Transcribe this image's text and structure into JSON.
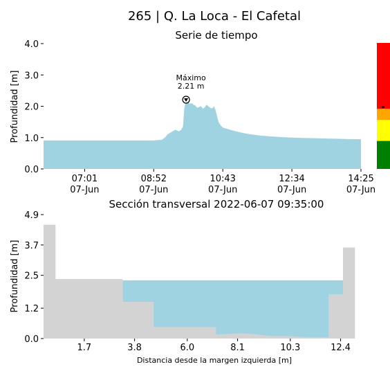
{
  "figure": {
    "title": "265 | Q. La Loca - El Cafetal"
  },
  "chart_data": [
    {
      "type": "area",
      "title": "Serie de tiempo",
      "xlabel": "",
      "ylabel": "Profundidad [m]",
      "xlim": [
        "05:55",
        "14:25"
      ],
      "ylim": [
        0,
        4.0
      ],
      "yticks": [
        0.0,
        1.0,
        2.0,
        3.0,
        4.0
      ],
      "ytick_labels": [
        "0.0",
        "1.0",
        "2.0",
        "3.0",
        "4.0"
      ],
      "xticks": [
        "07:01",
        "08:52",
        "10:43",
        "12:34",
        "14:25"
      ],
      "xtick_labels": [
        {
          "time": "07:01",
          "date": "07-Jun"
        },
        {
          "time": "08:52",
          "date": "07-Jun"
        },
        {
          "time": "10:43",
          "date": "07-Jun"
        },
        {
          "time": "12:34",
          "date": "07-Jun"
        },
        {
          "time": "14:25",
          "date": "07-Jun"
        }
      ],
      "color": "#9fd3e1",
      "series": [
        {
          "x": [
            "05:55",
            "06:30",
            "07:00",
            "07:30",
            "08:00",
            "08:30",
            "08:52",
            "09:05",
            "09:10",
            "09:14",
            "09:18",
            "09:22",
            "09:27",
            "09:32",
            "09:36",
            "09:39",
            "09:41",
            "09:44",
            "09:47",
            "09:50",
            "09:53",
            "09:56",
            "09:59",
            "10:02",
            "10:05",
            "10:08",
            "10:11",
            "10:14",
            "10:17",
            "10:20",
            "10:23",
            "10:26",
            "10:29",
            "10:31",
            "10:33",
            "10:36",
            "10:40",
            "10:43",
            "10:50",
            "11:00",
            "11:10",
            "11:20",
            "11:30",
            "11:45",
            "12:00",
            "12:15",
            "12:34",
            "12:50",
            "13:10",
            "13:30",
            "13:50",
            "14:10",
            "14:25"
          ],
          "values": [
            0.91,
            0.91,
            0.91,
            0.91,
            0.91,
            0.91,
            0.91,
            0.93,
            1.0,
            1.1,
            1.15,
            1.2,
            1.25,
            1.2,
            1.25,
            1.35,
            1.9,
            2.21,
            2.15,
            2.08,
            2.1,
            2.05,
            2.02,
            1.95,
            1.98,
            2.0,
            1.92,
            1.97,
            2.05,
            2.0,
            1.95,
            1.93,
            2.0,
            1.9,
            1.75,
            1.5,
            1.38,
            1.32,
            1.28,
            1.22,
            1.17,
            1.13,
            1.1,
            1.06,
            1.04,
            1.02,
            1.0,
            0.99,
            0.98,
            0.97,
            0.96,
            0.95,
            0.95
          ]
        }
      ],
      "annotation": {
        "label": "Máximo",
        "value_text": "2.21 m",
        "x": "09:44",
        "y": 2.21
      },
      "status_bar": {
        "segments": [
          {
            "from": 0.0,
            "to": 1.0,
            "color": "#008000"
          },
          {
            "from": 1.0,
            "to": 1.75,
            "color": "#ffff00"
          },
          {
            "from": 1.75,
            "to": 2.15,
            "color": "#ffa500"
          },
          {
            "from": 2.15,
            "to": 4.5,
            "color": "#ff0000"
          }
        ],
        "marker_value": 2.21
      }
    },
    {
      "type": "area",
      "title": "Sección transversal 2022-06-07 09:35:00",
      "xlabel": "Distancia desde la margen izquierda [m]",
      "ylabel": "Profundidad [m]",
      "xlim": [
        0,
        13.25
      ],
      "ylim": [
        0,
        4.9
      ],
      "yticks": [
        0.0,
        1.2,
        2.5,
        3.7,
        4.9
      ],
      "ytick_labels": [
        "0.0",
        "1.2",
        "2.5",
        "3.7",
        "4.9"
      ],
      "xticks": [
        1.7,
        3.8,
        6.0,
        8.1,
        10.3,
        12.4
      ],
      "xtick_labels": [
        "1.7",
        "3.8",
        "6.0",
        "8.1",
        "10.3",
        "12.4"
      ],
      "water_level": 2.3,
      "water_color": "#9fd3e1",
      "ground_color": "#d3d3d3",
      "bed_profile": {
        "x": [
          0,
          0.5,
          0.5,
          3.3,
          3.3,
          4.6,
          4.6,
          7.2,
          7.2,
          8.0,
          8.5,
          9.0,
          9.5,
          10.0,
          10.5,
          11.0,
          11.4,
          11.9,
          11.9,
          12.5,
          12.5,
          13.0
        ],
        "values": [
          4.5,
          4.5,
          2.35,
          2.35,
          1.45,
          1.45,
          0.45,
          0.45,
          0.15,
          0.2,
          0.2,
          0.15,
          0.1,
          0.1,
          0.08,
          0.05,
          0.05,
          0.05,
          1.75,
          1.75,
          3.6,
          3.6
        ]
      }
    }
  ]
}
